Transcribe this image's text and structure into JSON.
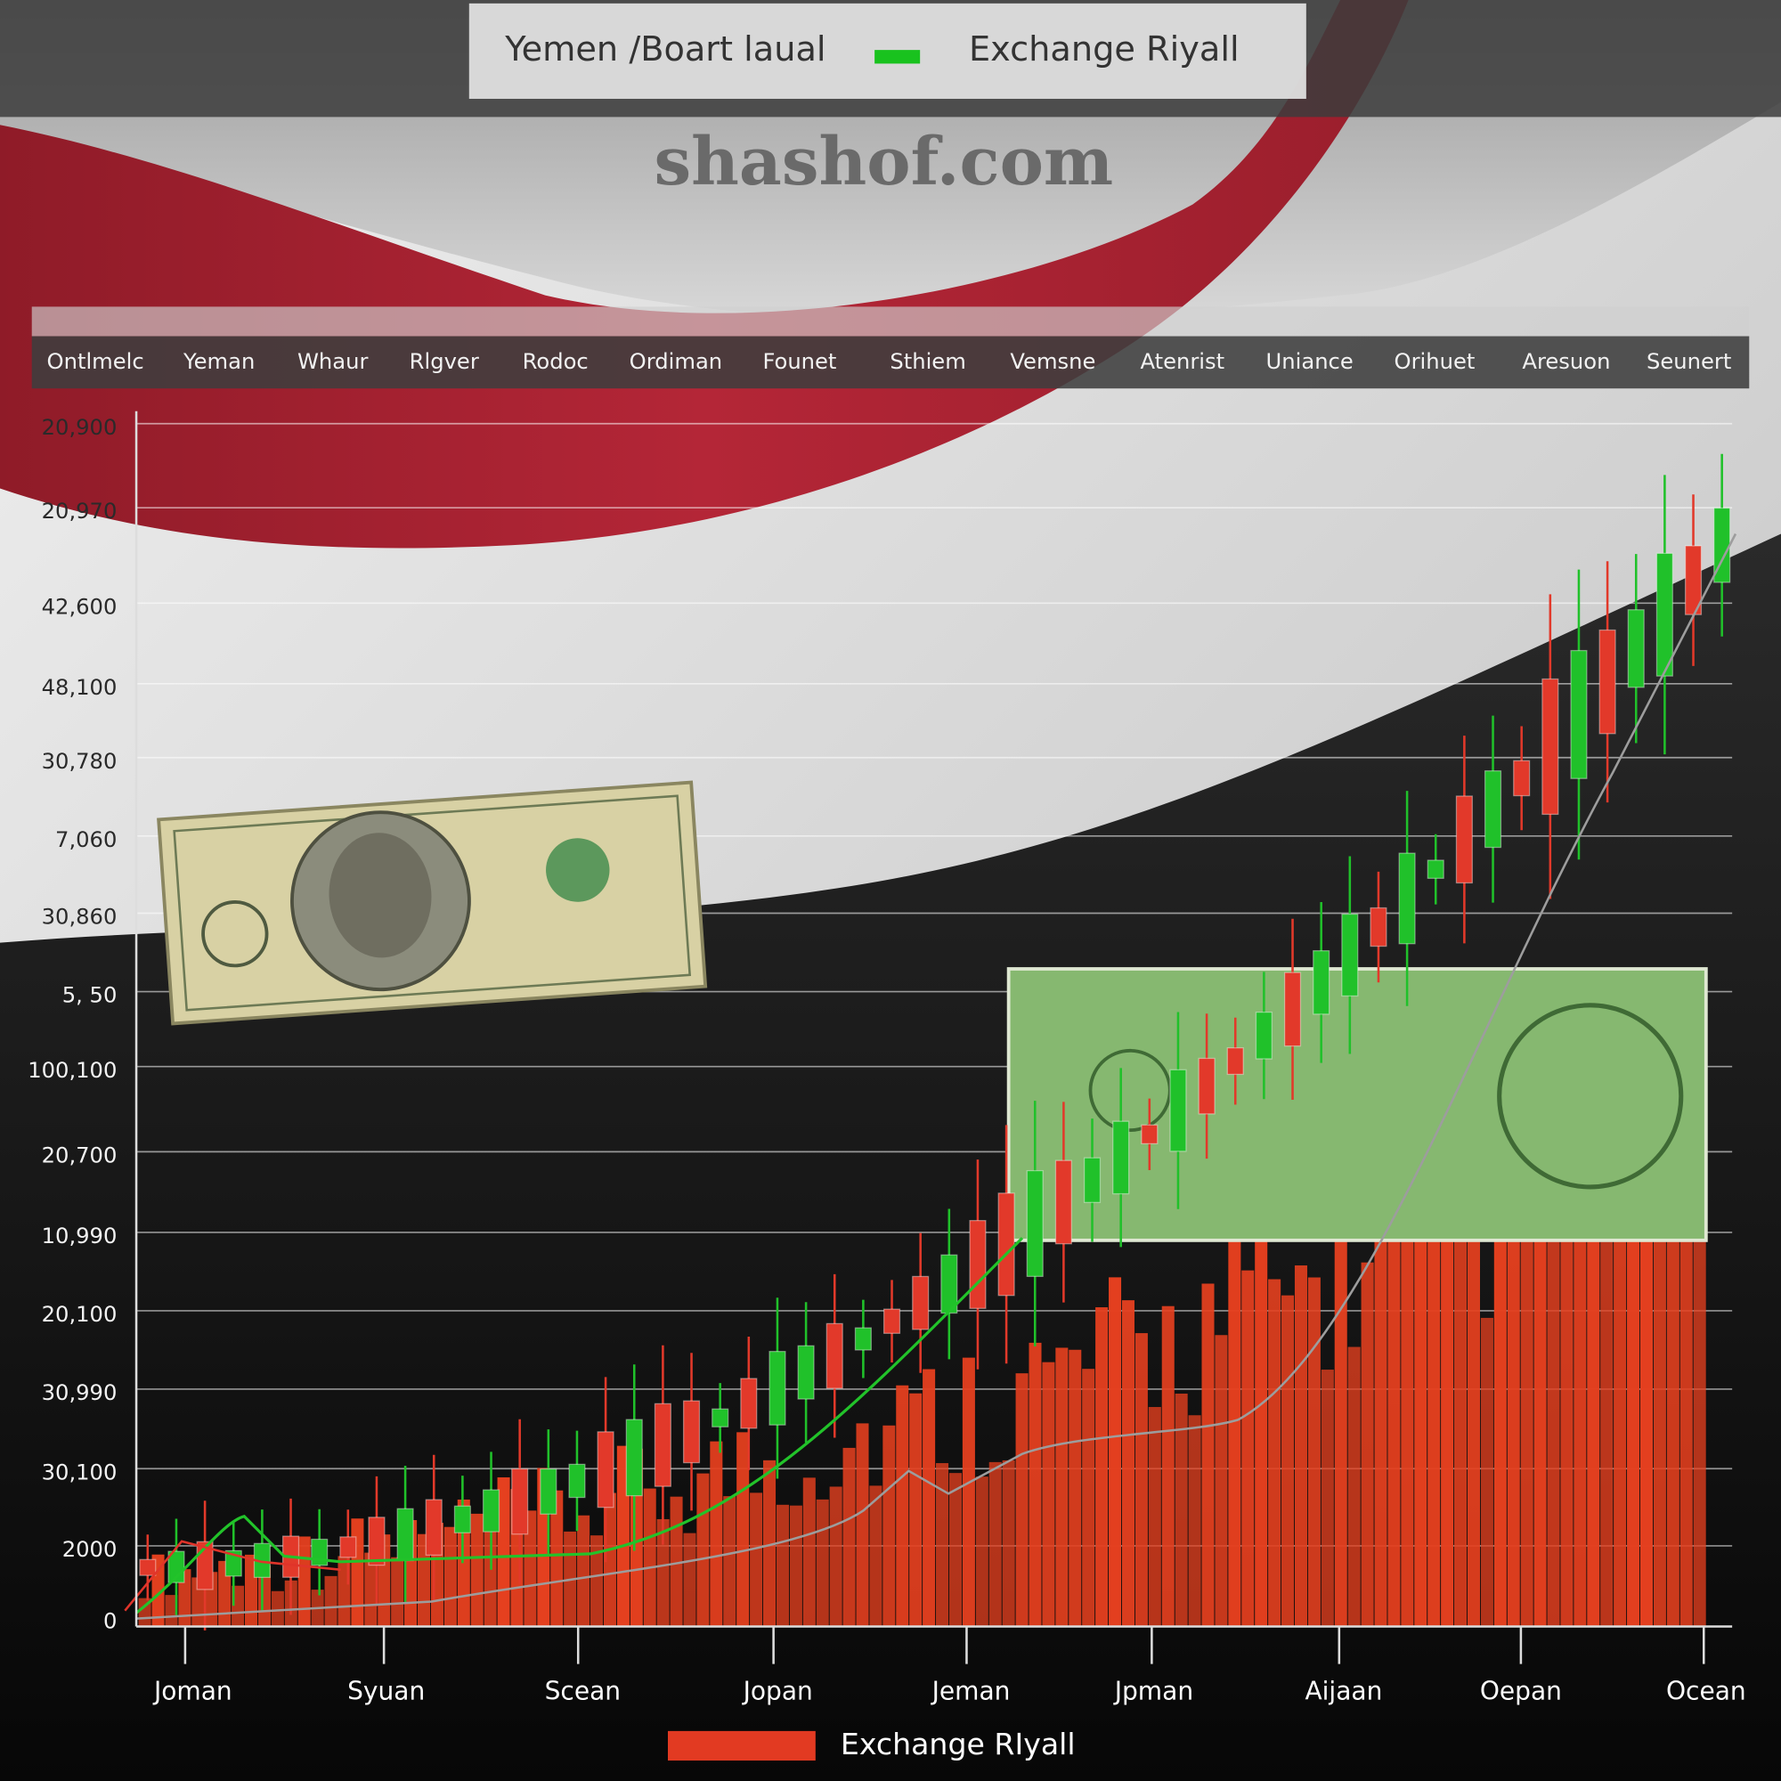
{
  "header": {
    "legend_left": "Yemen /Boart laual",
    "legend_right": "Exchange  Riyall"
  },
  "watermark": "shashof.com",
  "category_strip": [
    "Ontlmelc",
    "Yeman",
    "Whaur",
    "Rlgver",
    "Rodoc",
    "Ordiman",
    "Founet",
    "Sthiem",
    "Vemsne",
    "Atenrist",
    "Uniance",
    "Orihuet",
    "Aresuon",
    "Seunert"
  ],
  "y_axis_labels": [
    "20,900",
    "20,970",
    "42,600",
    "48,100",
    "30,780",
    "7,060",
    "30,860",
    "5, 50",
    "100,100",
    "20,700",
    "10,990",
    "20,100",
    "30,990",
    "30,100",
    "2000",
    "0"
  ],
  "x_axis_labels": [
    "Joman",
    "Syuan",
    "Scean",
    "Jopan",
    "Jeman",
    "Jpman",
    "Aijaan",
    "Oepan",
    "Ocean"
  ],
  "legend": "Exchange RIyall"
}
